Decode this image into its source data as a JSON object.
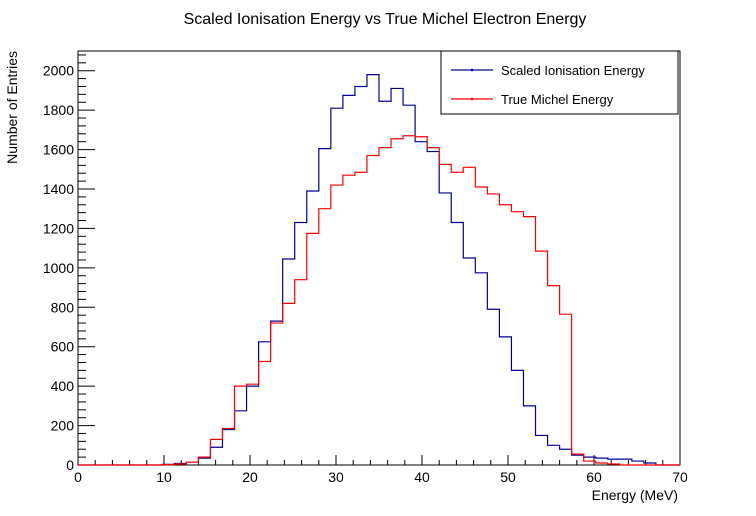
{
  "chart_data": {
    "type": "line",
    "title": "Scaled Ionisation Energy vs True Michel Electron Energy",
    "xlabel": "Energy (MeV)",
    "ylabel": "Number of Entries",
    "xlim": [
      0,
      70
    ],
    "ylim": [
      0,
      2100
    ],
    "x_ticks": [
      0,
      10,
      20,
      30,
      40,
      50,
      60,
      70
    ],
    "y_ticks": [
      0,
      200,
      400,
      600,
      800,
      1000,
      1200,
      1400,
      1600,
      1800,
      2000
    ],
    "bin_width": 1.4,
    "grid": false,
    "legend_position": "top-right",
    "series": [
      {
        "name": "Scaled Ionisation Energy",
        "color": "#000099",
        "values": [
          0,
          0,
          0,
          0,
          0,
          0,
          0,
          3,
          8,
          15,
          35,
          90,
          180,
          275,
          400,
          625,
          730,
          1045,
          1230,
          1390,
          1605,
          1810,
          1875,
          1920,
          1980,
          1845,
          1910,
          1825,
          1640,
          1590,
          1380,
          1230,
          1050,
          975,
          790,
          650,
          480,
          300,
          150,
          100,
          80,
          50,
          40,
          35,
          30,
          30,
          20,
          10,
          0,
          0
        ]
      },
      {
        "name": "True Michel Energy",
        "color": "#ff0000",
        "values": [
          0,
          0,
          0,
          0,
          0,
          0,
          0,
          2,
          5,
          15,
          40,
          130,
          185,
          400,
          410,
          525,
          720,
          820,
          940,
          1175,
          1300,
          1420,
          1470,
          1485,
          1570,
          1610,
          1655,
          1670,
          1665,
          1610,
          1525,
          1485,
          1510,
          1410,
          1375,
          1320,
          1285,
          1260,
          1085,
          910,
          765,
          55,
          20,
          10,
          5,
          0,
          0,
          0,
          0,
          0
        ]
      }
    ]
  }
}
